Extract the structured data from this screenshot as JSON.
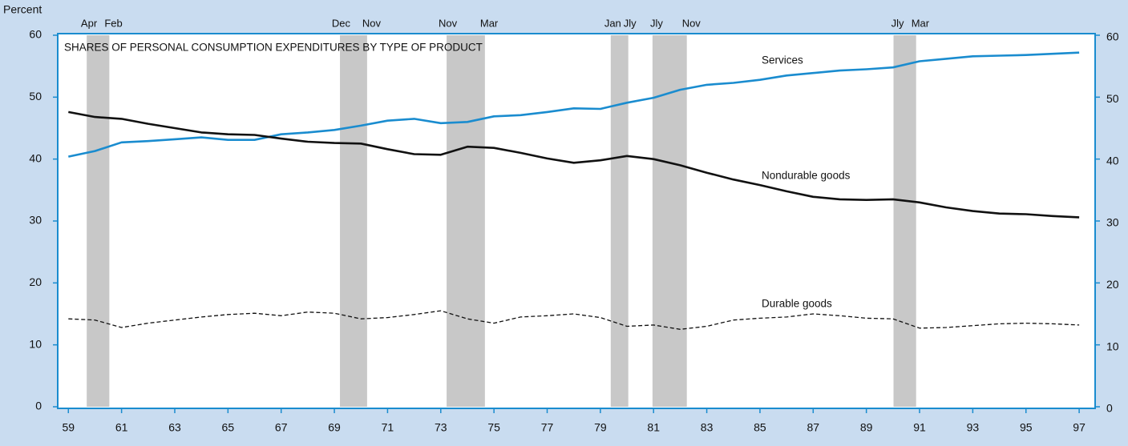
{
  "chart_data": {
    "type": "line",
    "title": "SHARES OF PERSONAL CONSUMPTION EXPENDITURES BY TYPE OF PRODUCT",
    "y_label": "Percent",
    "x": [
      59,
      60,
      61,
      62,
      63,
      64,
      65,
      66,
      67,
      68,
      69,
      70,
      71,
      72,
      73,
      74,
      75,
      76,
      77,
      78,
      79,
      80,
      81,
      82,
      83,
      84,
      85,
      86,
      87,
      88,
      89,
      90,
      91,
      92,
      93,
      94,
      95,
      96,
      97
    ],
    "series": [
      {
        "name": "Services",
        "color": "#1a8ccf",
        "dashed": false,
        "values": [
          40.4,
          41.3,
          42.7,
          42.9,
          43.2,
          43.5,
          43.1,
          43.1,
          44.0,
          44.3,
          44.7,
          45.4,
          46.2,
          46.5,
          45.8,
          46.0,
          46.9,
          47.1,
          47.6,
          48.2,
          48.1,
          49.1,
          49.9,
          51.2,
          52.0,
          52.3,
          52.8,
          53.5,
          53.9,
          54.3,
          54.5,
          54.8,
          55.8,
          56.2,
          56.6,
          56.7,
          56.8,
          57.0,
          57.2
        ]
      },
      {
        "name": "Nondurable goods",
        "color": "#111111",
        "dashed": false,
        "values": [
          47.6,
          46.8,
          46.5,
          45.7,
          45.0,
          44.3,
          44.0,
          43.9,
          43.3,
          42.8,
          42.6,
          42.5,
          41.6,
          40.8,
          40.7,
          42.0,
          41.8,
          41.0,
          40.1,
          39.4,
          39.8,
          40.5,
          40.0,
          39.0,
          37.8,
          36.7,
          35.8,
          34.8,
          33.9,
          33.5,
          33.4,
          33.5,
          33.0,
          32.2,
          31.6,
          31.2,
          31.1,
          30.8,
          30.6
        ]
      },
      {
        "name": "Durable goods",
        "color": "#111111",
        "dashed": true,
        "values": [
          14.2,
          14.0,
          12.8,
          13.5,
          14.0,
          14.5,
          14.9,
          15.1,
          14.7,
          15.3,
          15.1,
          14.2,
          14.4,
          14.9,
          15.5,
          14.2,
          13.5,
          14.5,
          14.7,
          15.0,
          14.4,
          13.0,
          13.2,
          12.5,
          13.0,
          14.0,
          14.3,
          14.5,
          15.0,
          14.7,
          14.3,
          14.2,
          12.7,
          12.8,
          13.1,
          13.4,
          13.5,
          13.4,
          13.2
        ]
      }
    ],
    "recessions": [
      {
        "start": 59.69,
        "end": 60.54,
        "start_label": "Apr",
        "end_label": "Feb"
      },
      {
        "start": 69.21,
        "end": 70.23,
        "start_label": "Dec",
        "end_label": "Nov"
      },
      {
        "start": 73.22,
        "end": 74.66,
        "start_label": "Nov",
        "end_label": "Mar"
      },
      {
        "start": 79.39,
        "end": 80.05,
        "start_label": "Jan",
        "end_label": "Jly"
      },
      {
        "start": 80.96,
        "end": 82.25,
        "start_label": "Jly",
        "end_label": "Nov"
      },
      {
        "start": 90.02,
        "end": 90.87,
        "start_label": "Jly",
        "end_label": "Mar"
      }
    ],
    "xlim": [
      58.6,
      97.6
    ],
    "xticks": [
      59,
      61,
      63,
      65,
      67,
      69,
      71,
      73,
      75,
      77,
      79,
      81,
      83,
      85,
      87,
      89,
      91,
      93,
      95,
      97
    ],
    "ylim": [
      0,
      60
    ],
    "yticks": [
      0,
      10,
      20,
      30,
      40,
      50,
      60
    ],
    "y2lim": [
      0,
      60
    ],
    "y2ticks": [
      0,
      10,
      20,
      30,
      40,
      50,
      60
    ],
    "grid": false
  }
}
